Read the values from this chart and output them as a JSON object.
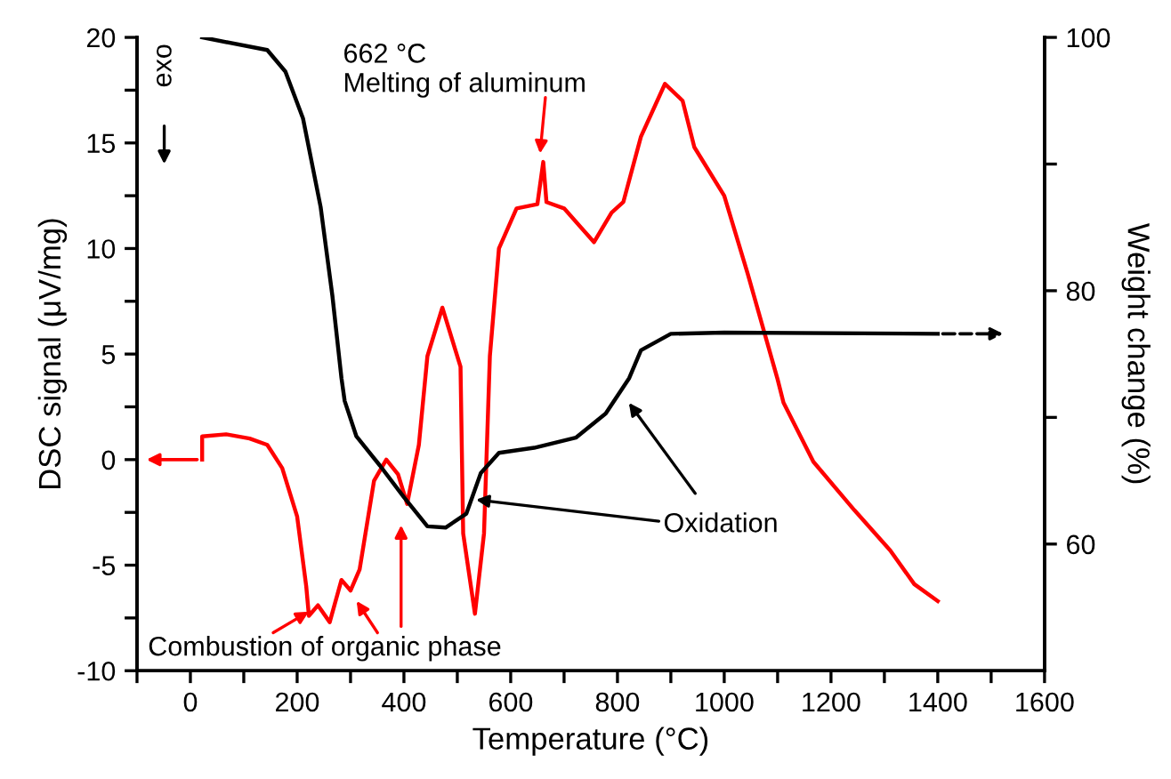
{
  "chart_data": {
    "type": "line",
    "xlabel": "Temperature (°C)",
    "ylabel": "DSC signal (μV/mg)",
    "y2label": "Weight change (%)",
    "xlim": [
      -100,
      1600
    ],
    "xticks": [
      {
        "value": -100,
        "label": null
      },
      0,
      {
        "value": 100,
        "label": null
      },
      200,
      {
        "value": 300,
        "label": null
      },
      400,
      {
        "value": 500,
        "label": null
      },
      600,
      {
        "value": 700,
        "label": null
      },
      800,
      {
        "value": 900,
        "label": null
      },
      1000,
      {
        "value": 1100,
        "label": null
      },
      1200,
      {
        "value": 1300,
        "label": null
      },
      1400,
      {
        "value": 1500,
        "label": null
      },
      1600
    ],
    "ylim": [
      -10,
      20
    ],
    "yticks": [
      -10,
      {
        "value": -7.5,
        "label": null
      },
      -5,
      {
        "value": -2.5,
        "label": null
      },
      0,
      {
        "value": 2.5,
        "label": null
      },
      5,
      {
        "value": 7.5,
        "label": null
      },
      10,
      {
        "value": 12.5,
        "label": null
      },
      15,
      {
        "value": 17.5,
        "label": null
      },
      20
    ],
    "y2lim": [
      50,
      100
    ],
    "y2ticks": [
      60,
      {
        "value": 70,
        "label": null
      },
      80,
      {
        "value": 90,
        "label": null
      },
      100
    ],
    "grid": false,
    "legend": false,
    "marker": "none",
    "line_style": "solid",
    "series": [
      {
        "color": "#ff0000",
        "axis": "y",
        "x": [
          22,
          22,
          67,
          111,
          144,
          172,
          200,
          217,
          222,
          239,
          261,
          283,
          300,
          317,
          344,
          367,
          389,
          406,
          428,
          444,
          472,
          506,
          511,
          533,
          550,
          561,
          578,
          611,
          650,
          661,
          667,
          700,
          756,
          789,
          811,
          844,
          889,
          922,
          944,
          1000,
          1044,
          1100,
          1111,
          1167,
          1244,
          1311,
          1356,
          1400
        ],
        "values": [
          0.0,
          1.1,
          1.2,
          1.0,
          0.7,
          -0.4,
          -2.7,
          -6.0,
          -7.4,
          -6.9,
          -7.7,
          -5.7,
          -6.2,
          -5.2,
          -1.0,
          0.0,
          -0.7,
          -2.1,
          0.7,
          4.9,
          7.2,
          4.4,
          -3.5,
          -7.3,
          -3.5,
          4.9,
          10.0,
          11.9,
          12.1,
          14.1,
          12.2,
          11.9,
          10.3,
          11.7,
          12.2,
          15.3,
          17.8,
          17.0,
          14.8,
          12.5,
          8.8,
          3.8,
          2.7,
          -0.1,
          -2.4,
          -4.3,
          -5.9,
          -6.7
        ]
      },
      {
        "color": "#000000",
        "axis": "y2",
        "x": [
          22,
          144,
          178,
          211,
          244,
          266,
          283,
          289,
          311,
          355,
          400,
          444,
          478,
          517,
          544,
          578,
          644,
          722,
          778,
          822,
          844,
          900,
          1000,
          1400
        ],
        "values": [
          100,
          99.0,
          97.3,
          93.6,
          86.6,
          79.6,
          73.1,
          71.3,
          68.5,
          66.2,
          63.7,
          61.4,
          61.3,
          62.4,
          65.6,
          67.2,
          67.6,
          68.4,
          70.3,
          73.1,
          75.3,
          76.6,
          76.7,
          76.6
        ]
      }
    ],
    "annotations": [
      {
        "text": "662 °C\nMelting of aluminum",
        "x": 655,
        "y": 14.5
      },
      {
        "text": "Combustion of organic phase",
        "x": 222,
        "y": -7.2
      },
      {
        "text": "Oxidation",
        "x": 535,
        "y": -1.9
      },
      "exo"
    ]
  }
}
